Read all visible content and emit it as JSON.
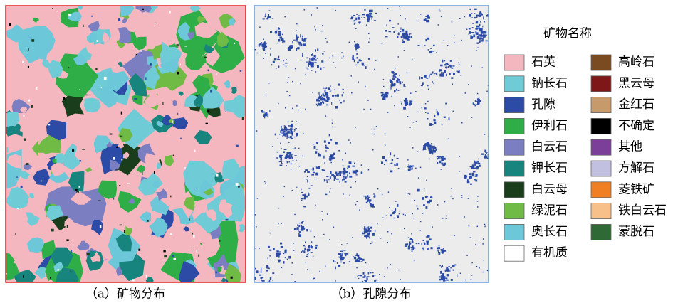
{
  "panels": [
    {
      "caption": "（a）矿物分布"
    },
    {
      "caption": "（b）孔隙分布"
    }
  ],
  "legend": {
    "title": "矿物名称",
    "items": [
      {
        "label": "石英",
        "color": "#f4b6bf"
      },
      {
        "label": "钠长石",
        "color": "#6fcbd6"
      },
      {
        "label": "孔隙",
        "color": "#2b4ba6"
      },
      {
        "label": "伊利石",
        "color": "#2fae48"
      },
      {
        "label": "白云石",
        "color": "#7b7fc2"
      },
      {
        "label": "钾长石",
        "color": "#17847e"
      },
      {
        "label": "白云母",
        "color": "#1a3d1c"
      },
      {
        "label": "绿泥石",
        "color": "#6fbb45"
      },
      {
        "label": "奥长石",
        "color": "#6cc7d8"
      },
      {
        "label": "有机质",
        "color": "#ffffff"
      },
      {
        "label": "高岭石",
        "color": "#7a4a21"
      },
      {
        "label": "黑云母",
        "color": "#7e1818"
      },
      {
        "label": "金红石",
        "color": "#c79a6c"
      },
      {
        "label": "不确定",
        "color": "#000000"
      },
      {
        "label": "其他",
        "color": "#7c3f99"
      },
      {
        "label": "方解石",
        "color": "#c2c0e0"
      },
      {
        "label": "菱铁矿",
        "color": "#ef7f22"
      },
      {
        "label": "铁白云石",
        "color": "#f7c08a"
      },
      {
        "label": "蒙脱石",
        "color": "#2f6a36"
      }
    ]
  }
}
